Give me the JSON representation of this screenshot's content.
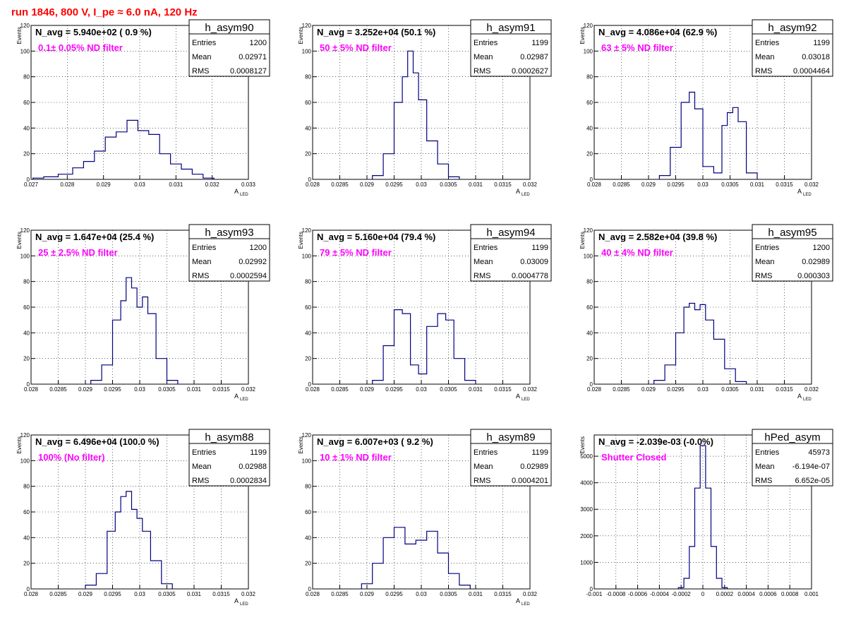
{
  "run_title": "run 1846,   800 V, I_pe ≈ 6.0 nA, 120 Hz",
  "colors": {
    "hist": "#000080",
    "annotation": "#ff00ff",
    "title": "#ff0000",
    "grid": "#000000"
  },
  "stat_labels": {
    "entries": "Entries",
    "mean": "Mean",
    "rms": "RMS"
  },
  "chart_data": [
    {
      "type": "histogram",
      "name": "h_asym90",
      "nlabel": "N_avg = 5.940e+02 ( 0.9 %)",
      "filter": "0.1± 0.05% ND filter",
      "entries": "1200",
      "mean": "0.02971",
      "rms": "0.0008127",
      "ylabel": "Events",
      "xlabel": "A",
      "xlabel_sub": "LED",
      "xlim": [
        0.027,
        0.033
      ],
      "ylim": [
        0,
        120
      ],
      "xticks": [
        0.027,
        0.028,
        0.029,
        0.03,
        0.031,
        0.032,
        0.033
      ],
      "xtick_labels": [
        "0.027",
        "0.028",
        "0.029",
        "0.03",
        "0.031",
        "0.032",
        "0.033"
      ],
      "yticks": [
        0,
        20,
        40,
        60,
        80,
        100,
        120
      ],
      "ytick_labels": [
        "0",
        "20",
        "40",
        "60",
        "80",
        "100",
        "120"
      ],
      "x": [
        0.0272,
        0.0275,
        0.028,
        0.0283,
        0.0286,
        0.0289,
        0.0292,
        0.0295,
        0.0298,
        0.0301,
        0.0304,
        0.0307,
        0.031,
        0.0313,
        0.0316,
        0.0319
      ],
      "y": [
        1,
        2,
        4,
        9,
        14,
        22,
        33,
        37,
        46,
        38,
        35,
        20,
        12,
        8,
        4,
        1
      ]
    },
    {
      "type": "histogram",
      "name": "h_asym91",
      "nlabel": "N_avg = 3.252e+04 (50.1 %)",
      "filter": "50 ± 5% ND filter",
      "entries": "1199",
      "mean": "0.02987",
      "rms": "0.0002627",
      "ylabel": "Events",
      "xlabel": "A",
      "xlabel_sub": "LED",
      "xlim": [
        0.028,
        0.032
      ],
      "ylim": [
        0,
        120
      ],
      "xticks": [
        0.028,
        0.0285,
        0.029,
        0.0295,
        0.03,
        0.0305,
        0.031,
        0.0315,
        0.032
      ],
      "xtick_labels": [
        "0.028",
        "0.0285",
        "0.029",
        "0.0295",
        "0.03",
        "0.0305",
        "0.031",
        "0.0315",
        "0.032"
      ],
      "yticks": [
        0,
        20,
        40,
        60,
        80,
        100,
        120
      ],
      "ytick_labels": [
        "0",
        "20",
        "40",
        "60",
        "80",
        "100",
        "120"
      ],
      "x": [
        0.0292,
        0.0294,
        0.0296,
        0.0297,
        0.0298,
        0.0299,
        0.03,
        0.0302,
        0.0304,
        0.0306
      ],
      "y": [
        3,
        20,
        60,
        80,
        100,
        83,
        62,
        30,
        12,
        2
      ]
    },
    {
      "type": "histogram",
      "name": "h_asym92",
      "nlabel": "N_avg = 4.086e+04 (62.9 %)",
      "filter": "63 ± 5% ND filter",
      "entries": "1199",
      "mean": "0.03018",
      "rms": "0.0004464",
      "ylabel": "Events",
      "xlabel": "A",
      "xlabel_sub": "LED",
      "xlim": [
        0.028,
        0.032
      ],
      "ylim": [
        0,
        120
      ],
      "xticks": [
        0.028,
        0.0285,
        0.029,
        0.0295,
        0.03,
        0.0305,
        0.031,
        0.0315,
        0.032
      ],
      "xtick_labels": [
        "0.028",
        "0.0285",
        "0.029",
        "0.0295",
        "0.03",
        "0.0305",
        "0.031",
        "0.0315",
        "0.032"
      ],
      "yticks": [
        0,
        20,
        40,
        60,
        80,
        100,
        120
      ],
      "ytick_labels": [
        "0",
        "20",
        "40",
        "60",
        "80",
        "100",
        "120"
      ],
      "x": [
        0.0293,
        0.0295,
        0.0297,
        0.0298,
        0.0299,
        0.0301,
        0.0303,
        0.0304,
        0.0305,
        0.0306,
        0.0307,
        0.0309
      ],
      "y": [
        3,
        25,
        60,
        68,
        55,
        10,
        5,
        42,
        52,
        56,
        45,
        5
      ]
    },
    {
      "type": "histogram",
      "name": "h_asym93",
      "nlabel": "N_avg = 1.647e+04 (25.4 %)",
      "filter": "25 ± 2.5% ND filter",
      "entries": "1200",
      "mean": "0.02992",
      "rms": "0.0002594",
      "ylabel": "Events",
      "xlabel": "A",
      "xlabel_sub": "LED",
      "xlim": [
        0.028,
        0.032
      ],
      "ylim": [
        0,
        120
      ],
      "xticks": [
        0.028,
        0.0285,
        0.029,
        0.0295,
        0.03,
        0.0305,
        0.031,
        0.0315,
        0.032
      ],
      "xtick_labels": [
        "0.028",
        "0.0285",
        "0.029",
        "0.0295",
        "0.03",
        "0.0305",
        "0.031",
        "0.0315",
        "0.032"
      ],
      "yticks": [
        0,
        20,
        40,
        60,
        80,
        100,
        120
      ],
      "ytick_labels": [
        "0",
        "20",
        "40",
        "60",
        "80",
        "100",
        "120"
      ],
      "x": [
        0.0292,
        0.0294,
        0.0296,
        0.0297,
        0.0298,
        0.0299,
        0.03,
        0.0301,
        0.0302,
        0.0304,
        0.0306
      ],
      "y": [
        3,
        15,
        50,
        65,
        83,
        75,
        60,
        68,
        55,
        20,
        3
      ]
    },
    {
      "type": "histogram",
      "name": "h_asym94",
      "nlabel": "N_avg = 5.160e+04 (79.4 %)",
      "filter": "79 ± 5% ND filter",
      "entries": "1199",
      "mean": "0.03009",
      "rms": "0.0004778",
      "ylabel": "Events",
      "xlabel": "A",
      "xlabel_sub": "LED",
      "xlim": [
        0.028,
        0.032
      ],
      "ylim": [
        0,
        120
      ],
      "xticks": [
        0.028,
        0.0285,
        0.029,
        0.0295,
        0.03,
        0.0305,
        0.031,
        0.0315,
        0.032
      ],
      "xtick_labels": [
        "0.028",
        "0.0285",
        "0.029",
        "0.0295",
        "0.03",
        "0.0305",
        "0.031",
        "0.0315",
        "0.032"
      ],
      "yticks": [
        0,
        20,
        40,
        60,
        80,
        100,
        120
      ],
      "ytick_labels": [
        "0",
        "20",
        "40",
        "60",
        "80",
        "100",
        "120"
      ],
      "x": [
        0.0292,
        0.0294,
        0.0296,
        0.0297,
        0.0299,
        0.03,
        0.0302,
        0.0304,
        0.0305,
        0.0307,
        0.0309
      ],
      "y": [
        3,
        30,
        58,
        55,
        15,
        8,
        45,
        55,
        50,
        20,
        3
      ]
    },
    {
      "type": "histogram",
      "name": "h_asym95",
      "nlabel": "N_avg = 2.582e+04 (39.8 %)",
      "filter": "40 ± 4% ND filter",
      "entries": "1200",
      "mean": "0.02989",
      "rms": "0.000303",
      "ylabel": "Events",
      "xlabel": "A",
      "xlabel_sub": "LED",
      "xlim": [
        0.028,
        0.032
      ],
      "ylim": [
        0,
        120
      ],
      "xticks": [
        0.028,
        0.0285,
        0.029,
        0.0295,
        0.03,
        0.0305,
        0.031,
        0.0315,
        0.032
      ],
      "xtick_labels": [
        "0.028",
        "0.0285",
        "0.029",
        "0.0295",
        "0.03",
        "0.0305",
        "0.031",
        "0.0315",
        "0.032"
      ],
      "yticks": [
        0,
        20,
        40,
        60,
        80,
        100,
        120
      ],
      "ytick_labels": [
        "0",
        "20",
        "40",
        "60",
        "80",
        "100",
        "120"
      ],
      "x": [
        0.0292,
        0.0294,
        0.0296,
        0.0297,
        0.0298,
        0.0299,
        0.03,
        0.0301,
        0.0303,
        0.0305,
        0.0307
      ],
      "y": [
        3,
        15,
        40,
        60,
        63,
        58,
        62,
        50,
        35,
        12,
        2
      ]
    },
    {
      "type": "histogram",
      "name": "h_asym88",
      "nlabel": "N_avg = 6.496e+04 (100.0 %)",
      "filter": "100% (No filter)",
      "entries": "1199",
      "mean": "0.02988",
      "rms": "0.0002834",
      "ylabel": "Events",
      "xlabel": "A",
      "xlabel_sub": "LED",
      "xlim": [
        0.028,
        0.032
      ],
      "ylim": [
        0,
        120
      ],
      "xticks": [
        0.028,
        0.0285,
        0.029,
        0.0295,
        0.03,
        0.0305,
        0.031,
        0.0315,
        0.032
      ],
      "xtick_labels": [
        "0.028",
        "0.0285",
        "0.029",
        "0.0295",
        "0.03",
        "0.0305",
        "0.031",
        "0.0315",
        "0.032"
      ],
      "yticks": [
        0,
        20,
        40,
        60,
        80,
        100,
        120
      ],
      "ytick_labels": [
        "0",
        "20",
        "40",
        "60",
        "80",
        "100",
        "120"
      ],
      "x": [
        0.0291,
        0.0293,
        0.0295,
        0.0296,
        0.0297,
        0.0298,
        0.0299,
        0.03,
        0.0301,
        0.0303,
        0.0305
      ],
      "y": [
        3,
        12,
        45,
        60,
        72,
        76,
        62,
        55,
        45,
        22,
        4
      ]
    },
    {
      "type": "histogram",
      "name": "h_asym89",
      "nlabel": "N_avg = 6.007e+03 ( 9.2 %)",
      "filter": "10 ± 1% ND filter",
      "entries": "1199",
      "mean": "0.02989",
      "rms": "0.0004201",
      "ylabel": "Events",
      "xlabel": "A",
      "xlabel_sub": "LED",
      "xlim": [
        0.028,
        0.032
      ],
      "ylim": [
        0,
        120
      ],
      "xticks": [
        0.028,
        0.0285,
        0.029,
        0.0295,
        0.03,
        0.0305,
        0.031,
        0.0315,
        0.032
      ],
      "xtick_labels": [
        "0.028",
        "0.0285",
        "0.029",
        "0.0295",
        "0.03",
        "0.0305",
        "0.031",
        "0.0315",
        "0.032"
      ],
      "yticks": [
        0,
        20,
        40,
        60,
        80,
        100,
        120
      ],
      "ytick_labels": [
        "0",
        "20",
        "40",
        "60",
        "80",
        "100",
        "120"
      ],
      "x": [
        0.029,
        0.0292,
        0.0294,
        0.0296,
        0.0298,
        0.03,
        0.0302,
        0.0304,
        0.0306,
        0.0308
      ],
      "y": [
        4,
        20,
        40,
        48,
        35,
        38,
        45,
        28,
        12,
        3
      ]
    },
    {
      "type": "histogram",
      "name": "hPed_asym",
      "nlabel": "N_avg = -2.039e-03 (-0.0%)",
      "filter": "Shutter Closed",
      "entries": "45973",
      "mean": "-6.194e-07",
      "rms": "6.652e-05",
      "ylabel": "Events",
      "xlabel": "",
      "xlabel_sub": "",
      "xlim": [
        -0.001,
        0.001
      ],
      "ylim": [
        0,
        5800
      ],
      "xticks": [
        -0.001,
        -0.0008,
        -0.0006,
        -0.0004,
        -0.0002,
        0,
        0.0002,
        0.0004,
        0.0006,
        0.0008,
        0.001
      ],
      "xtick_labels": [
        "-0.001",
        "-0.0008",
        "-0.0006",
        "-0.0004",
        "-0.0002",
        "0",
        "0.0002",
        "0.0004",
        "0.0006",
        "0.0008",
        "0.001"
      ],
      "yticks": [
        0,
        1000,
        2000,
        3000,
        4000,
        5000
      ],
      "ytick_labels": [
        "0",
        "1000",
        "2000",
        "3000",
        "4000",
        "5000"
      ],
      "x": [
        -0.0002,
        -0.00015,
        -0.0001,
        -5e-05,
        0,
        5e-05,
        0.0001,
        0.00015,
        0.0002
      ],
      "y": [
        50,
        400,
        1600,
        3800,
        5400,
        3800,
        1600,
        400,
        50
      ]
    }
  ]
}
